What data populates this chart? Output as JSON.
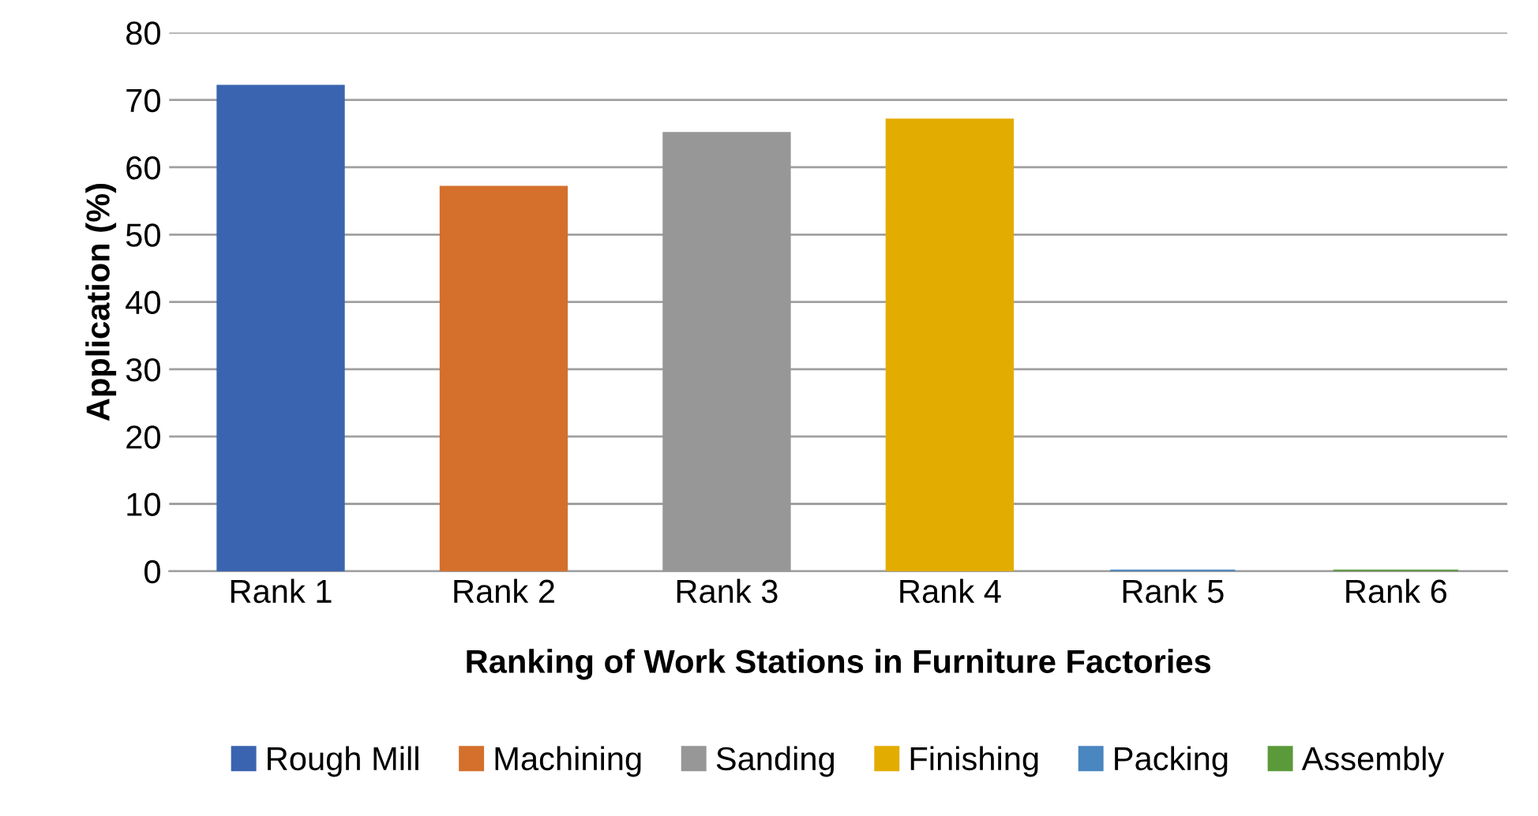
{
  "chart_data": {
    "type": "bar",
    "xlabel": "Ranking of Work Stations in Furniture Factories",
    "ylabel": "Application (%)",
    "categories": [
      "Rank 1",
      "Rank 2",
      "Rank 3",
      "Rank 4",
      "Rank 5",
      "Rank 6"
    ],
    "series": [
      {
        "name": "Rough Mill",
        "color": "#3a64b0",
        "values": [
          72,
          null,
          null,
          null,
          null,
          null
        ]
      },
      {
        "name": "Machining",
        "color": "#d4702c",
        "values": [
          null,
          57,
          null,
          null,
          null,
          null
        ]
      },
      {
        "name": "Sanding",
        "color": "#979797",
        "values": [
          null,
          null,
          65,
          null,
          null,
          null
        ]
      },
      {
        "name": "Finishing",
        "color": "#e3ac00",
        "values": [
          null,
          null,
          null,
          67,
          null,
          null
        ]
      },
      {
        "name": "Packing",
        "color": "#4a86c0",
        "values": [
          null,
          null,
          null,
          null,
          0,
          null
        ]
      },
      {
        "name": "Assembly",
        "color": "#5b9a3a",
        "values": [
          null,
          null,
          null,
          null,
          null,
          0
        ]
      }
    ],
    "ylim": [
      0,
      80
    ],
    "yticks": [
      0,
      10,
      20,
      30,
      40,
      50,
      60,
      70,
      80
    ],
    "grid": "y",
    "legend": "bottom"
  }
}
